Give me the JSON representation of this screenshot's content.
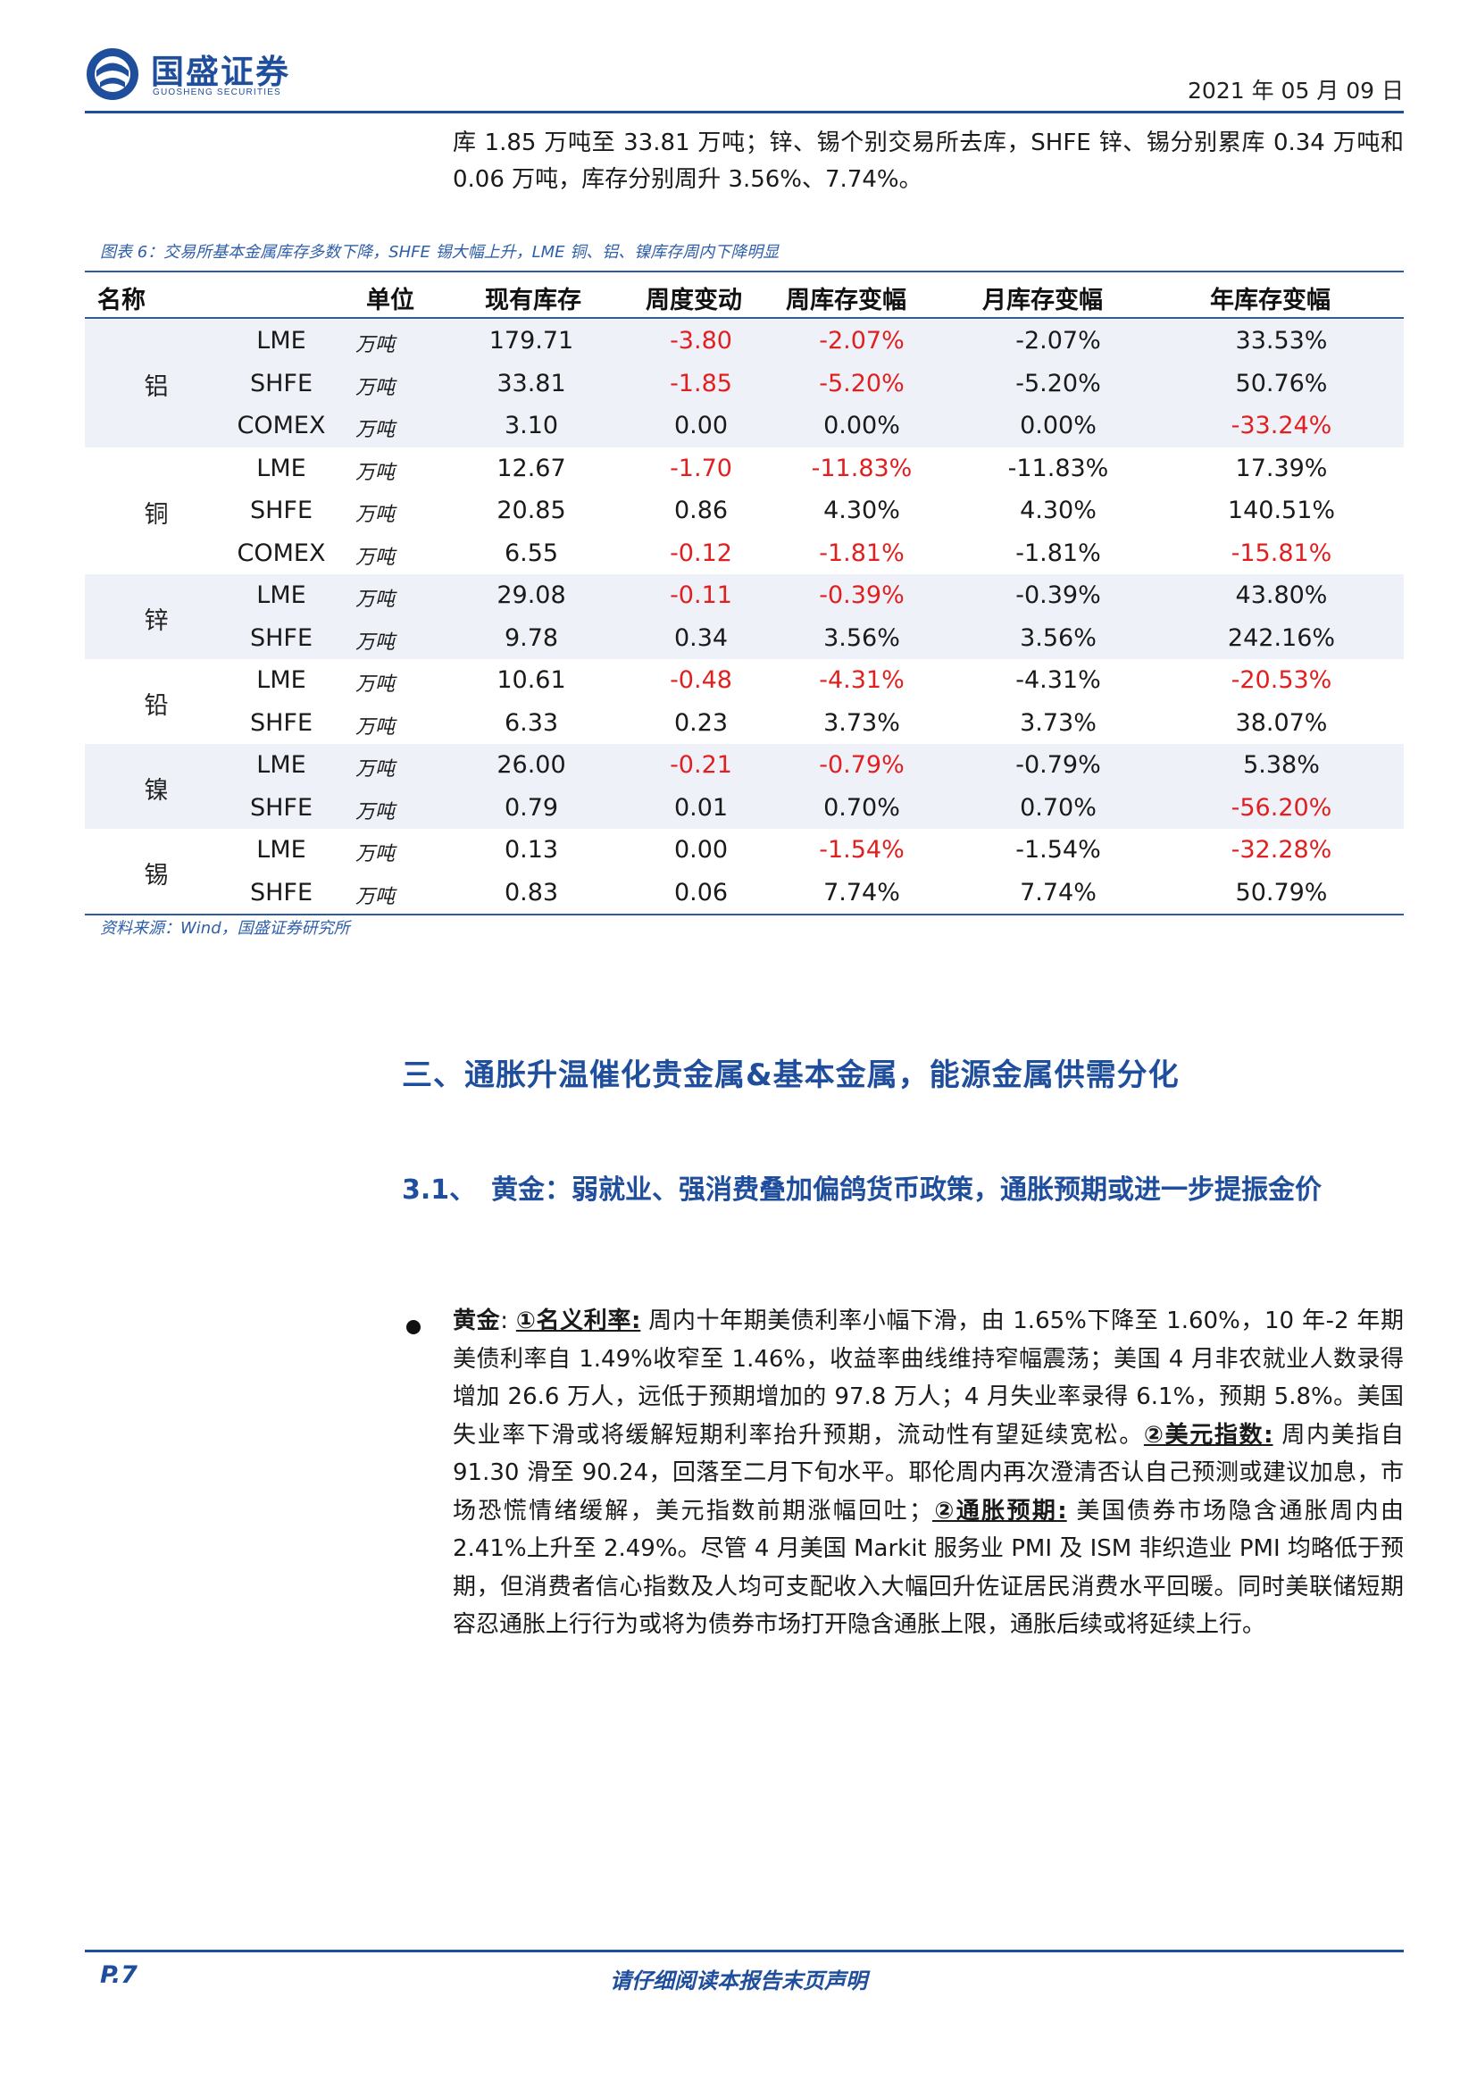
{
  "header": {
    "logo_cn": "国盛证券",
    "logo_en": "GUOSHENG SECURITIES",
    "date": "2021 年 05 月 09 日"
  },
  "intro_text": "库 1.85 万吨至 33.81 万吨；锌、锡个别交易所去库，SHFE 锌、锡分别累库 0.34 万吨和 0.06 万吨，库存分别周升 3.56%、7.74%。",
  "figure": {
    "caption": "图表 6：交易所基本金属库存多数下降，SHFE 锡大幅上升，LME 铜、铝、镍库存周内下降明显",
    "source": "资料来源：Wind，国盛证券研究所"
  },
  "table": {
    "headers": [
      "名称",
      "单位",
      "现有库存",
      "周度变动",
      "周库存变幅",
      "月库存变幅",
      "年库存变幅"
    ],
    "groups": [
      {
        "name": "铝",
        "rows": [
          {
            "exchange": "LME",
            "unit": "万吨",
            "stock": "179.71",
            "weekly_change": "-3.80",
            "weekly_pct": "-2.07%",
            "monthly_pct": "-2.07%",
            "yearly_pct": "33.53%"
          },
          {
            "exchange": "SHFE",
            "unit": "万吨",
            "stock": "33.81",
            "weekly_change": "-1.85",
            "weekly_pct": "-5.20%",
            "monthly_pct": "-5.20%",
            "yearly_pct": "50.76%"
          },
          {
            "exchange": "COMEX",
            "unit": "万吨",
            "stock": "3.10",
            "weekly_change": "0.00",
            "weekly_pct": "0.00%",
            "monthly_pct": "0.00%",
            "yearly_pct": "-33.24%"
          }
        ]
      },
      {
        "name": "铜",
        "rows": [
          {
            "exchange": "LME",
            "unit": "万吨",
            "stock": "12.67",
            "weekly_change": "-1.70",
            "weekly_pct": "-11.83%",
            "monthly_pct": "-11.83%",
            "yearly_pct": "17.39%"
          },
          {
            "exchange": "SHFE",
            "unit": "万吨",
            "stock": "20.85",
            "weekly_change": "0.86",
            "weekly_pct": "4.30%",
            "monthly_pct": "4.30%",
            "yearly_pct": "140.51%"
          },
          {
            "exchange": "COMEX",
            "unit": "万吨",
            "stock": "6.55",
            "weekly_change": "-0.12",
            "weekly_pct": "-1.81%",
            "monthly_pct": "-1.81%",
            "yearly_pct": "-15.81%"
          }
        ]
      },
      {
        "name": "锌",
        "rows": [
          {
            "exchange": "LME",
            "unit": "万吨",
            "stock": "29.08",
            "weekly_change": "-0.11",
            "weekly_pct": "-0.39%",
            "monthly_pct": "-0.39%",
            "yearly_pct": "43.80%"
          },
          {
            "exchange": "SHFE",
            "unit": "万吨",
            "stock": "9.78",
            "weekly_change": "0.34",
            "weekly_pct": "3.56%",
            "monthly_pct": "3.56%",
            "yearly_pct": "242.16%"
          }
        ]
      },
      {
        "name": "铅",
        "rows": [
          {
            "exchange": "LME",
            "unit": "万吨",
            "stock": "10.61",
            "weekly_change": "-0.48",
            "weekly_pct": "-4.31%",
            "monthly_pct": "-4.31%",
            "yearly_pct": "-20.53%"
          },
          {
            "exchange": "SHFE",
            "unit": "万吨",
            "stock": "6.33",
            "weekly_change": "0.23",
            "weekly_pct": "3.73%",
            "monthly_pct": "3.73%",
            "yearly_pct": "38.07%"
          }
        ]
      },
      {
        "name": "镍",
        "rows": [
          {
            "exchange": "LME",
            "unit": "万吨",
            "stock": "26.00",
            "weekly_change": "-0.21",
            "weekly_pct": "-0.79%",
            "monthly_pct": "-0.79%",
            "yearly_pct": "5.38%"
          },
          {
            "exchange": "SHFE",
            "unit": "万吨",
            "stock": "0.79",
            "weekly_change": "0.01",
            "weekly_pct": "0.70%",
            "monthly_pct": "0.70%",
            "yearly_pct": "-56.20%"
          }
        ]
      },
      {
        "name": "锡",
        "rows": [
          {
            "exchange": "LME",
            "unit": "万吨",
            "stock": "0.13",
            "weekly_change": "0.00",
            "weekly_pct": "-1.54%",
            "monthly_pct": "-1.54%",
            "yearly_pct": "-32.28%"
          },
          {
            "exchange": "SHFE",
            "unit": "万吨",
            "stock": "0.83",
            "weekly_change": "0.06",
            "weekly_pct": "7.74%",
            "monthly_pct": "7.74%",
            "yearly_pct": "50.79%"
          }
        ]
      }
    ],
    "negative_color": "#e02020",
    "shade_color": "#eff1f8"
  },
  "section": {
    "heading": "三、通胀升温催化贵金属&基本金属，能源金属供需分化",
    "sub_number": "3.1、",
    "sub_heading": "黄金：弱就业、强消费叠加偏鸽货币政策，通胀预期或进一步提振金价"
  },
  "body": {
    "label_gold": "黄金",
    "colon": ": ",
    "k1": "①名义利率:",
    "t1": " 周内十年期美债利率小幅下滑，由 1.65%下降至 1.60%，10 年-2 年期美债利率自 1.49%收窄至 1.46%，收益率曲线维持窄幅震荡；美国 4 月非农就业人数录得增加 26.6 万人，远低于预期增加的 97.8 万人；4 月失业率录得 6.1%，预期 5.8%。美国失业率下滑或将缓解短期利率抬升预期，流动性有望延续宽松。",
    "k2": "②美元指数:",
    "t2": " 周内美指自 91.30 滑至 90.24，回落至二月下旬水平。耶伦周内再次澄清否认自己预测或建议加息，市场恐慌情绪缓解，美元指数前期涨幅回吐；",
    "k3": "②通胀预期:",
    "t3": " 美国债券市场隐含通胀周内由 2.41%上升至 2.49%。尽管 4 月美国 Markit 服务业 PMI 及 ISM 非织造业 PMI 均略低于预期，但消费者信心指数及人均可支配收入大幅回升佐证居民消费水平回暖。同时美联储短期容忍通胀上行行为或将为债券市场打开隐含通胀上限，通胀后续或将延续上行。"
  },
  "footer": {
    "page": "P.7",
    "notice": "请仔细阅读本报告末页声明"
  },
  "colors": {
    "brand_blue": "#1f4e9c",
    "caption_blue": "#2f5fa8"
  }
}
